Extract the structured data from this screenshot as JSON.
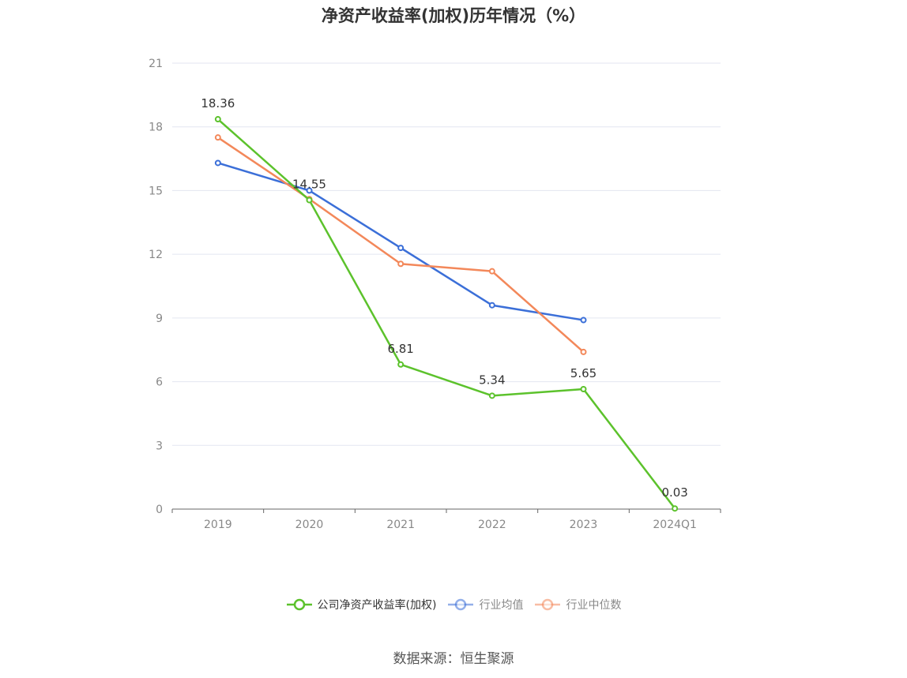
{
  "title": "净资产收益率(加权)历年情况（%）",
  "source": "数据来源：恒生聚源",
  "colors": {
    "company": "#5cc22c",
    "avg": "#3b6fd8",
    "median": "#f3885a",
    "grid": "#e3e6f0",
    "axis": "#666666",
    "tick_text": "#888888",
    "label_text": "#333333",
    "legend_active_text": "#333333",
    "legend_inactive_text": "#888888"
  },
  "legend": [
    {
      "label": "公司净资产收益率(加权)",
      "color": "#5cc22c",
      "faded": false
    },
    {
      "label": "行业均值",
      "color": "#3b6fd8",
      "faded": true
    },
    {
      "label": "行业中位数",
      "color": "#f3885a",
      "faded": true
    }
  ],
  "chart_data": {
    "type": "line",
    "title": "净资产收益率(加权)历年情况（%）",
    "xlabel": "",
    "ylabel": "",
    "categories": [
      "2019",
      "2020",
      "2021",
      "2022",
      "2023",
      "2024Q1"
    ],
    "ylim": [
      0,
      21
    ],
    "yticks": [
      0,
      3,
      6,
      9,
      12,
      15,
      18,
      21
    ],
    "grid": true,
    "legend_position": "bottom",
    "series": [
      {
        "name": "公司净资产收益率(加权)",
        "values": [
          18.36,
          14.55,
          6.81,
          5.34,
          5.65,
          0.03
        ],
        "data_labels": [
          "18.36",
          "14.55",
          "6.81",
          "5.34",
          "5.65",
          "0.03"
        ],
        "color": "#5cc22c"
      },
      {
        "name": "行业均值",
        "values": [
          16.3,
          15.0,
          12.3,
          9.6,
          8.9,
          null
        ],
        "color": "#3b6fd8"
      },
      {
        "name": "行业中位数",
        "values": [
          17.5,
          14.6,
          11.55,
          11.2,
          7.4,
          null
        ],
        "color": "#f3885a"
      }
    ]
  }
}
